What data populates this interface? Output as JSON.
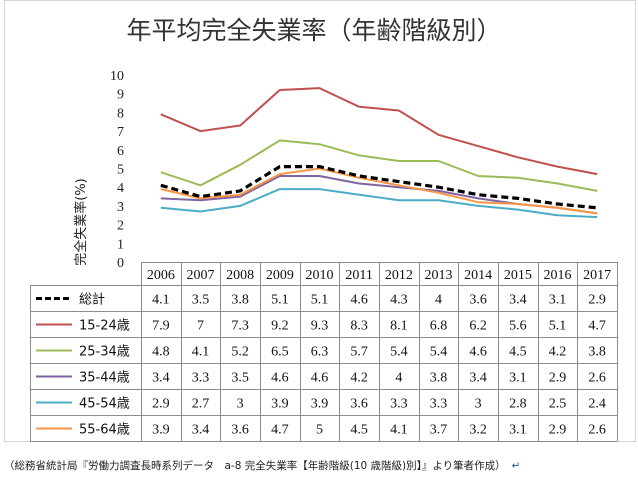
{
  "footer": {
    "text": "（総務省統計局『労働力調査長時系列データ　a-8 完全失業率【年齢階級(10 歳階級)別】』より筆者作成）",
    "mark": "↵"
  },
  "chart_data": {
    "type": "line",
    "title": "年平均完全失業率（年齢階級別）",
    "xlabel": "",
    "ylabel": "完全失業率(%)",
    "ylim": [
      0,
      10
    ],
    "yticks": [
      0,
      1,
      2,
      3,
      4,
      5,
      6,
      7,
      8,
      9,
      10
    ],
    "grid": false,
    "legend": "data-table",
    "categories": [
      "2006",
      "2007",
      "2008",
      "2009",
      "2010",
      "2011",
      "2012",
      "2013",
      "2014",
      "2015",
      "2016",
      "2017"
    ],
    "series": [
      {
        "name": "総計",
        "color": "#000000",
        "style": "dashed",
        "values": [
          4.1,
          3.5,
          3.8,
          5.1,
          5.1,
          4.6,
          4.3,
          4,
          3.6,
          3.4,
          3.1,
          2.9
        ]
      },
      {
        "name": "15-24歳",
        "color": "#C0504D",
        "style": "solid",
        "values": [
          7.9,
          7,
          7.3,
          9.2,
          9.3,
          8.3,
          8.1,
          6.8,
          6.2,
          5.6,
          5.1,
          4.7
        ]
      },
      {
        "name": "25-34歳",
        "color": "#9BBB59",
        "style": "solid",
        "values": [
          4.8,
          4.1,
          5.2,
          6.5,
          6.3,
          5.7,
          5.4,
          5.4,
          4.6,
          4.5,
          4.2,
          3.8
        ]
      },
      {
        "name": "35-44歳",
        "color": "#8064A2",
        "style": "solid",
        "values": [
          3.4,
          3.3,
          3.5,
          4.6,
          4.6,
          4.2,
          4,
          3.8,
          3.4,
          3.1,
          2.9,
          2.6
        ]
      },
      {
        "name": "45-54歳",
        "color": "#4BACC6",
        "style": "solid",
        "values": [
          2.9,
          2.7,
          3,
          3.9,
          3.9,
          3.6,
          3.3,
          3.3,
          3,
          2.8,
          2.5,
          2.4
        ]
      },
      {
        "name": "55-64歳",
        "color": "#F79646",
        "style": "solid",
        "values": [
          3.9,
          3.4,
          3.6,
          4.7,
          5,
          4.5,
          4.1,
          3.7,
          3.2,
          3.1,
          2.9,
          2.6
        ]
      }
    ]
  }
}
